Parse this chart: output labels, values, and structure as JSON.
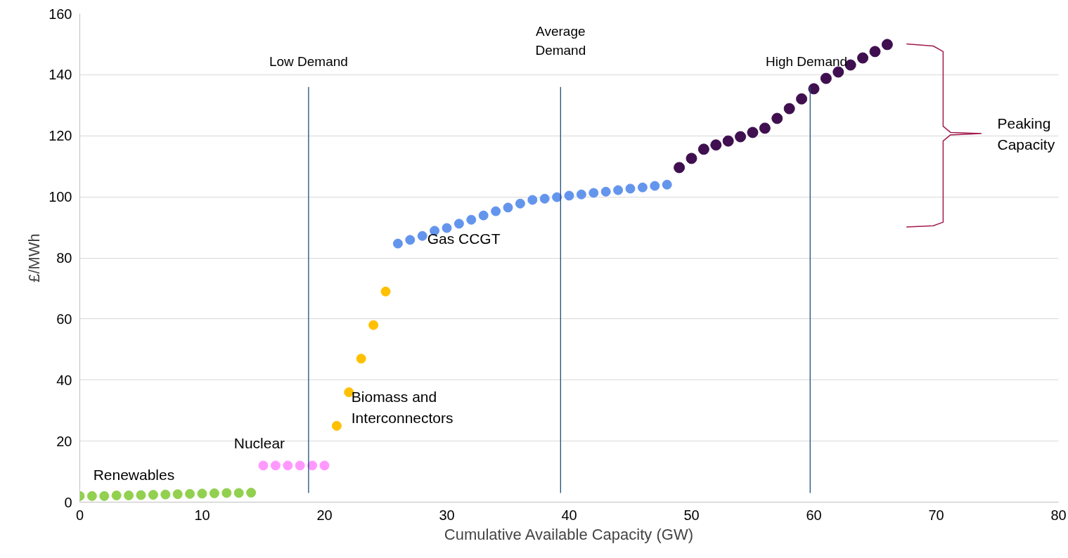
{
  "chart_data": {
    "type": "scatter",
    "xlabel": "Cumulative Available Capacity (GW)",
    "ylabel": "£/MWh",
    "xlim": [
      0,
      80
    ],
    "ylim": [
      0,
      160
    ],
    "xticks": [
      0,
      10,
      20,
      30,
      40,
      50,
      60,
      70,
      80
    ],
    "yticks": [
      0,
      20,
      40,
      60,
      80,
      100,
      120,
      140,
      160
    ],
    "grid": "y",
    "legend": false,
    "marker": "circle",
    "series": [
      {
        "name": "Renewables",
        "color": "#92d050",
        "x": [
          0,
          1,
          2,
          3,
          4,
          5,
          6,
          7,
          8,
          9,
          10,
          11,
          12,
          13,
          14
        ],
        "values": [
          2,
          2,
          2,
          2.2,
          2.2,
          2.3,
          2.4,
          2.5,
          2.6,
          2.7,
          2.8,
          2.9,
          3,
          3,
          3.1
        ]
      },
      {
        "name": "Nuclear",
        "color": "#ff99ff",
        "x": [
          15,
          16,
          17,
          18,
          19,
          20
        ],
        "values": [
          12,
          12,
          12,
          12,
          12,
          12
        ]
      },
      {
        "name": "Biomass and Interconnectors",
        "color": "#ffc000",
        "x": [
          21,
          22,
          23,
          24,
          25
        ],
        "values": [
          25,
          36,
          47,
          58,
          69
        ]
      },
      {
        "name": "Gas CCGT",
        "color": "#6495ed",
        "x": [
          26,
          27,
          28,
          29,
          30,
          31,
          32,
          33,
          34,
          35,
          36,
          37,
          38,
          39,
          40,
          41,
          42,
          43,
          44,
          45,
          46,
          47,
          48
        ],
        "values": [
          84.7,
          85.9,
          87.2,
          88.9,
          89.8,
          91.2,
          92.5,
          93.9,
          95.3,
          96.5,
          97.8,
          99,
          99.4,
          99.9,
          100.4,
          100.8,
          101.3,
          101.7,
          102.2,
          102.7,
          103.1,
          103.6,
          104
        ]
      },
      {
        "color": "#3f0f4f",
        "x": [
          49,
          50,
          51,
          52,
          53,
          54,
          55,
          56,
          57,
          58,
          59,
          60,
          61,
          62,
          63,
          64,
          65,
          66
        ],
        "values": [
          109.6,
          112.6,
          115.6,
          117,
          118.3,
          119.7,
          121.1,
          122.5,
          125.7,
          128.9,
          132.1,
          135.4,
          138.8,
          140.9,
          143.2,
          145.5,
          147.6,
          149.9
        ]
      }
    ],
    "ref_lines": [
      {
        "axis": "x",
        "value": 18.7,
        "label": "Low Demand",
        "color": "#1f4e79"
      },
      {
        "axis": "x",
        "value": 39.3,
        "label": "Average\nDemand",
        "color": "#1f4e79"
      },
      {
        "axis": "x",
        "value": 59.7,
        "label": "High Demand",
        "color": "#1f4e79"
      }
    ],
    "annotations": [
      "Peaking\nCapacity"
    ]
  }
}
